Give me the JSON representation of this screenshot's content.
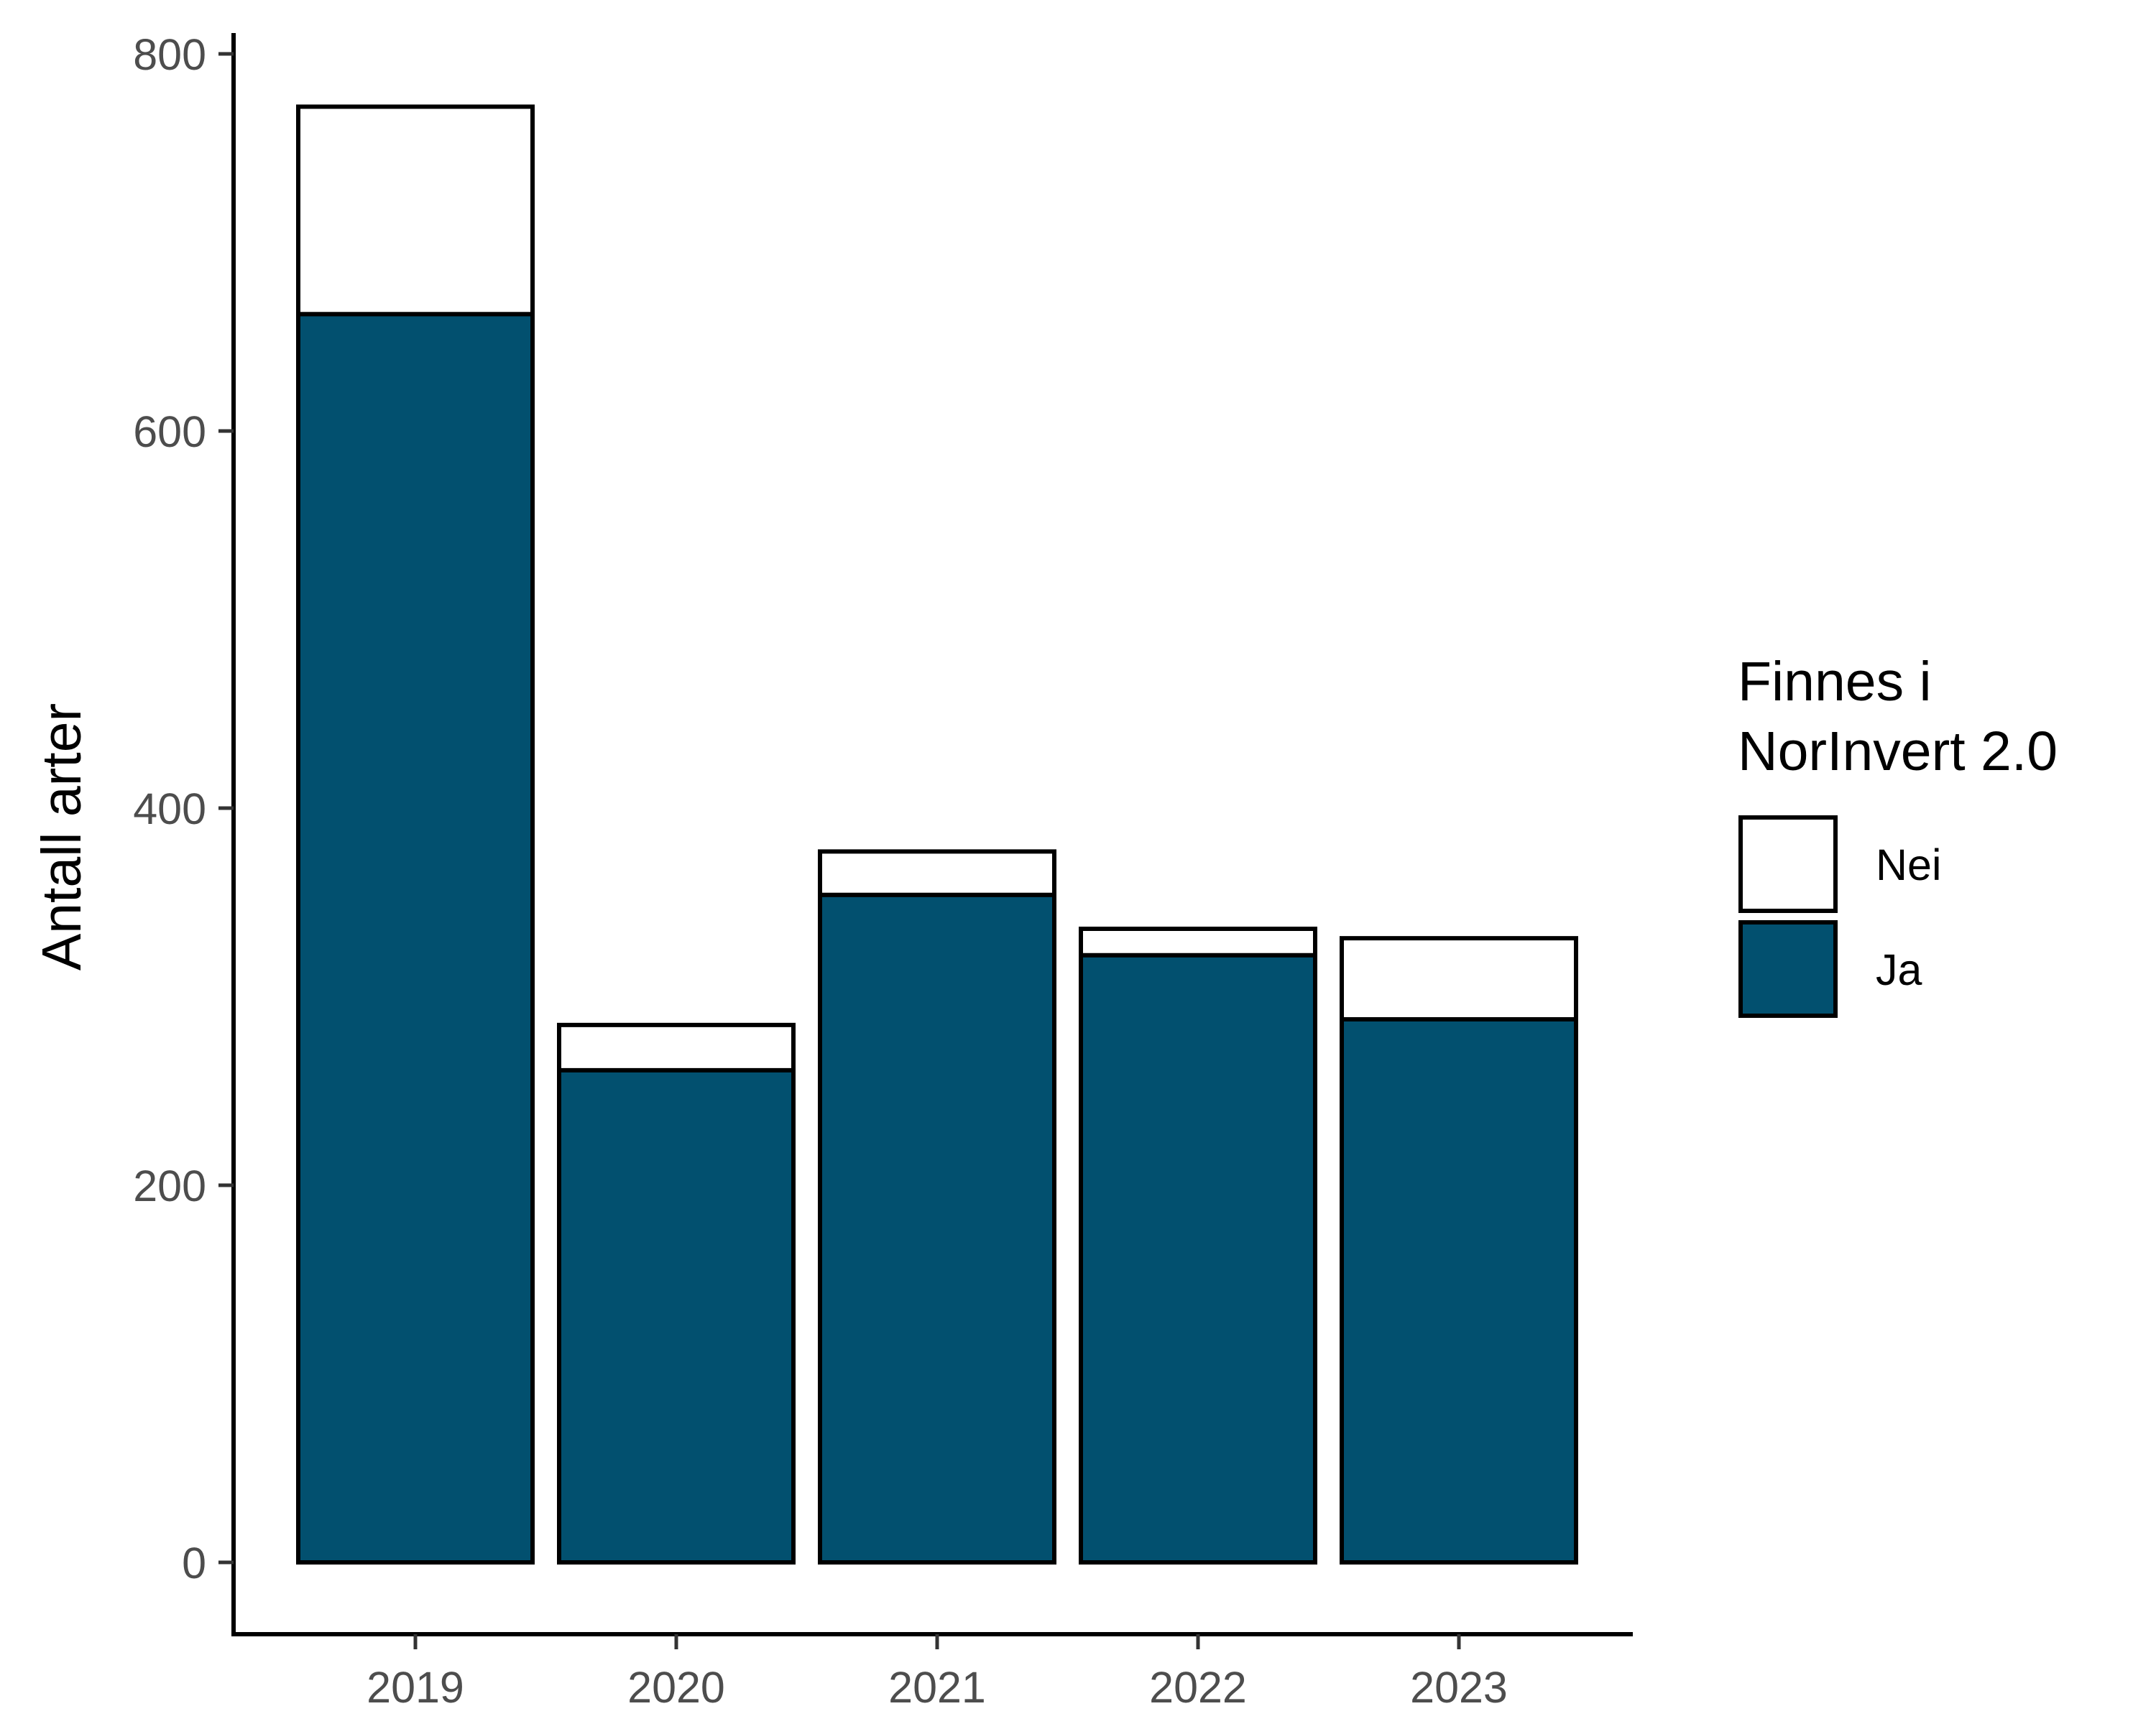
{
  "chart_data": {
    "type": "bar",
    "stacked": true,
    "categories": [
      "2019",
      "2020",
      "2021",
      "2022",
      "2023"
    ],
    "series": [
      {
        "name": "Ja",
        "values": [
          662,
          261,
          354,
          322,
          288
        ],
        "color": "#02506f"
      },
      {
        "name": "Nei",
        "values": [
          110,
          24,
          23,
          14,
          43
        ],
        "color": "#ffffff"
      }
    ],
    "xlabel": "",
    "ylabel": "Antall arter",
    "yticks": [
      0,
      200,
      400,
      600,
      800
    ],
    "ylim": [
      -38,
      810
    ],
    "grid": false,
    "legend": {
      "title_lines": [
        "Finnes i",
        "NorInvert 2.0"
      ],
      "entries": [
        "Nei",
        "Ja"
      ],
      "placement": "right"
    }
  }
}
